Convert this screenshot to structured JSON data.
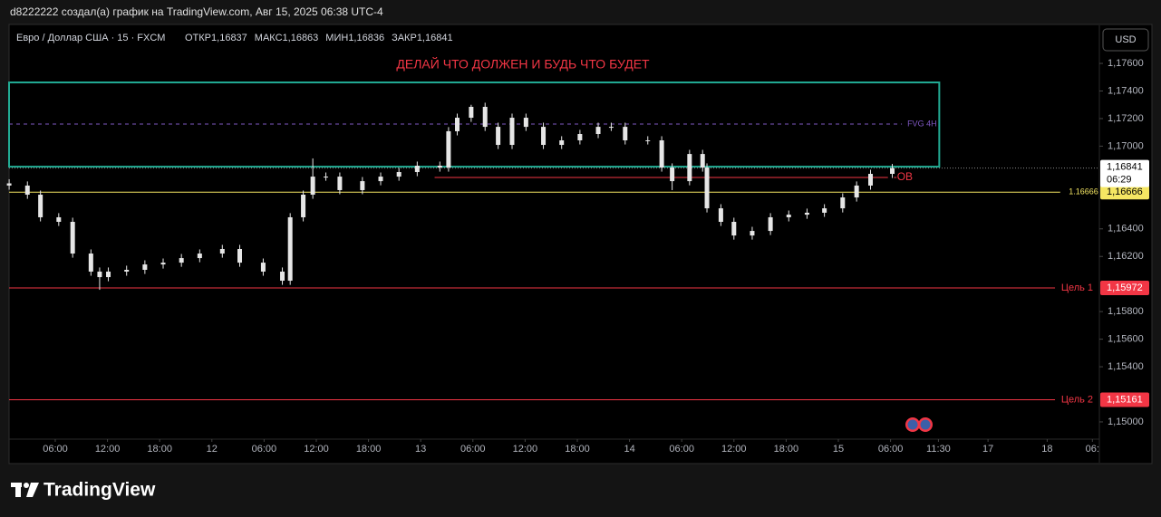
{
  "header": {
    "attribution": "d8222222 создал(а) график на TradingView.com, Авг 15, 2025 06:38 UTC-4"
  },
  "footer": {
    "brand": "TradingView"
  },
  "chart_data": {
    "type": "candlestick",
    "symbol": "Евро / Доллар США · 15 · FXCM",
    "ohlc_legend": [
      {
        "label": "ОТКР",
        "value": "1,16837"
      },
      {
        "label": "МАКС",
        "value": "1,16863"
      },
      {
        "label": "МИН",
        "value": "1,16836"
      },
      {
        "label": "ЗАКР",
        "value": "1,16841"
      }
    ],
    "title": "ДЕЛАЙ ЧТО ДОЛЖЕН И БУДЬ ЧТО БУДЕТ",
    "currency": "USD",
    "color": "#e6e6e6",
    "x": [
      0.7,
      2.8,
      4.3,
      6.4,
      8.0,
      10.1,
      11.1,
      12.1,
      14.2,
      16.3,
      18.4,
      20.5,
      22.6,
      25.2,
      27.2,
      29.9,
      32.1,
      33.0,
      34.5,
      35.6,
      37.1,
      38.7,
      41.3,
      43.4,
      45.5,
      47.6,
      50.2,
      51.2,
      52.2,
      53.8,
      55.4,
      56.9,
      58.5,
      60.1,
      62.1,
      64.2,
      66.3,
      68.4,
      69.9,
      71.5,
      74.1,
      75.7,
      76.9,
      78.9,
      80.4,
      80.9,
      82.5,
      84.0,
      86.1,
      88.2,
      90.3,
      92.4,
      94.4,
      96.5,
      98.1,
      99.7,
      102.2
    ],
    "open": [
      1.1673,
      1.16714,
      1.16648,
      1.16484,
      1.16451,
      1.16221,
      1.1609,
      1.1605,
      1.1609,
      1.16103,
      1.16142,
      1.16155,
      1.16188,
      1.16221,
      1.16254,
      1.16155,
      1.1609,
      1.16024,
      1.16484,
      1.16648,
      1.16779,
      1.16779,
      1.16681,
      1.16746,
      1.16779,
      1.16812,
      1.16858,
      1.16845,
      1.17108,
      1.17206,
      1.17285,
      1.1714,
      1.17009,
      1.17206,
      1.1714,
      1.17009,
      1.17042,
      1.17088,
      1.1714,
      1.1714,
      1.17042,
      1.17042,
      1.16845,
      1.16746,
      1.16943,
      1.16845,
      1.16549,
      1.16451,
      1.16352,
      1.16385,
      1.16484,
      1.16503,
      1.16517,
      1.16549,
      1.16628,
      1.16714,
      1.16799
    ],
    "high": [
      1.1676,
      1.16744,
      1.16678,
      1.16514,
      1.16481,
      1.16251,
      1.1612,
      1.1612,
      1.16133,
      1.16172,
      1.16185,
      1.16218,
      1.16251,
      1.16284,
      1.16284,
      1.16185,
      1.1612,
      1.16514,
      1.16678,
      1.16911,
      1.16809,
      1.16809,
      1.16776,
      1.16809,
      1.16842,
      1.16888,
      1.16888,
      1.17138,
      1.17236,
      1.173,
      1.17315,
      1.1717,
      1.17236,
      1.17236,
      1.1717,
      1.17072,
      1.17118,
      1.1717,
      1.1717,
      1.1717,
      1.17072,
      1.17072,
      1.16875,
      1.16973,
      1.16973,
      1.16875,
      1.16579,
      1.16481,
      1.16415,
      1.16514,
      1.16533,
      1.16547,
      1.16579,
      1.16658,
      1.16744,
      1.16829,
      1.16871
    ],
    "low": [
      1.16684,
      1.16618,
      1.16454,
      1.16421,
      1.16191,
      1.1606,
      1.15958,
      1.1602,
      1.1606,
      1.16073,
      1.16112,
      1.16125,
      1.16158,
      1.16191,
      1.16125,
      1.1606,
      1.15994,
      1.15994,
      1.16454,
      1.16618,
      1.16749,
      1.16651,
      1.16651,
      1.16716,
      1.16749,
      1.16782,
      1.16815,
      1.16815,
      1.17078,
      1.17176,
      1.1711,
      1.16979,
      1.16979,
      1.1711,
      1.16979,
      1.16979,
      1.17012,
      1.17058,
      1.1711,
      1.17012,
      1.17012,
      1.16815,
      1.16681,
      1.16716,
      1.16815,
      1.16519,
      1.16421,
      1.16322,
      1.16322,
      1.16355,
      1.16454,
      1.16473,
      1.16487,
      1.16519,
      1.16598,
      1.16684,
      1.16769
    ],
    "close": [
      1.16714,
      1.16648,
      1.16484,
      1.16451,
      1.16221,
      1.1609,
      1.1605,
      1.1609,
      1.16103,
      1.16142,
      1.16155,
      1.16188,
      1.16221,
      1.16254,
      1.16155,
      1.1609,
      1.16024,
      1.16484,
      1.16648,
      1.16779,
      1.16779,
      1.16681,
      1.16746,
      1.16779,
      1.16812,
      1.16858,
      1.16845,
      1.17108,
      1.17206,
      1.17285,
      1.1714,
      1.17009,
      1.17206,
      1.1714,
      1.17009,
      1.17042,
      1.17088,
      1.1714,
      1.1714,
      1.17042,
      1.17042,
      1.16845,
      1.16746,
      1.16943,
      1.16845,
      1.16549,
      1.16451,
      1.16352,
      1.16385,
      1.16484,
      1.16503,
      1.16517,
      1.16549,
      1.16628,
      1.16714,
      1.16799,
      1.16841
    ],
    "xlim": [
      0.69,
      126.0
    ],
    "xticks": [
      {
        "value": 6,
        "label": "06:00"
      },
      {
        "value": 12,
        "label": "12:00"
      },
      {
        "value": 18,
        "label": "18:00"
      },
      {
        "value": 24,
        "label": "12"
      },
      {
        "value": 30,
        "label": "06:00"
      },
      {
        "value": 36,
        "label": "12:00"
      },
      {
        "value": 42,
        "label": "18:00"
      },
      {
        "value": 48,
        "label": "13"
      },
      {
        "value": 54,
        "label": "06:00"
      },
      {
        "value": 60,
        "label": "12:00"
      },
      {
        "value": 66,
        "label": "18:00"
      },
      {
        "value": 72,
        "label": "14"
      },
      {
        "value": 78,
        "label": "06:00"
      },
      {
        "value": 84,
        "label": "12:00"
      },
      {
        "value": 90,
        "label": "18:00"
      },
      {
        "value": 96,
        "label": "15"
      },
      {
        "value": 102,
        "label": "06:00"
      },
      {
        "value": 107.5,
        "label": "11:30"
      },
      {
        "value": 113.2,
        "label": "17"
      },
      {
        "value": 120,
        "label": "18"
      },
      {
        "value": 125.2,
        "label": "06:"
      }
    ],
    "ylim": [
      1.14875,
      1.17876
    ],
    "yticks": [
      {
        "value": 1.176,
        "label": "1,17600"
      },
      {
        "value": 1.174,
        "label": "1,17400"
      },
      {
        "value": 1.172,
        "label": "1,17200"
      },
      {
        "value": 1.17,
        "label": "1,17000"
      },
      {
        "value": 1.164,
        "label": "1,16400"
      },
      {
        "value": 1.162,
        "label": "1,16200"
      },
      {
        "value": 1.158,
        "label": "1,15800"
      },
      {
        "value": 1.156,
        "label": "1,15600"
      },
      {
        "value": 1.154,
        "label": "1,15400"
      },
      {
        "value": 1.15,
        "label": "1,15000"
      }
    ],
    "zone": {
      "x": [
        0.69,
        107.6
      ],
      "y": [
        1.16851,
        1.17462
      ],
      "color": "#22ab94"
    },
    "levels": [
      {
        "name": "FVG 4H",
        "value": 1.1716,
        "color": "#7e57c2",
        "dashed": true,
        "x": [
          0.69,
          103.3
        ]
      },
      {
        "name": "-OB",
        "value": 1.16773,
        "color": "#f23645",
        "dashed": false,
        "x": [
          49.6,
          101.7
        ]
      },
      {
        "name": "1.16666",
        "value": 1.16666,
        "value_label": "1,16666",
        "color": "#f5e663",
        "dashed": false,
        "x": [
          0.69,
          121.5
        ]
      },
      {
        "name": "Цель 1",
        "value": 1.15972,
        "value_label": "1,15972",
        "color": "#f23645",
        "dashed": false,
        "x": [
          0.69,
          120.9
        ]
      },
      {
        "name": "Цель 2",
        "value": 1.15161,
        "value_label": "1,15161",
        "color": "#f23645",
        "dashed": false,
        "x": [
          0.69,
          120.9
        ]
      }
    ],
    "last": {
      "value": 1.16841,
      "label": "1,16841",
      "countdown": "06:29"
    }
  }
}
